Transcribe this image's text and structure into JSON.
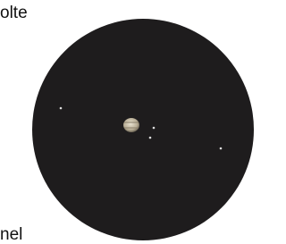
{
  "texts": {
    "top": "olte",
    "bottom": "nel"
  }
}
